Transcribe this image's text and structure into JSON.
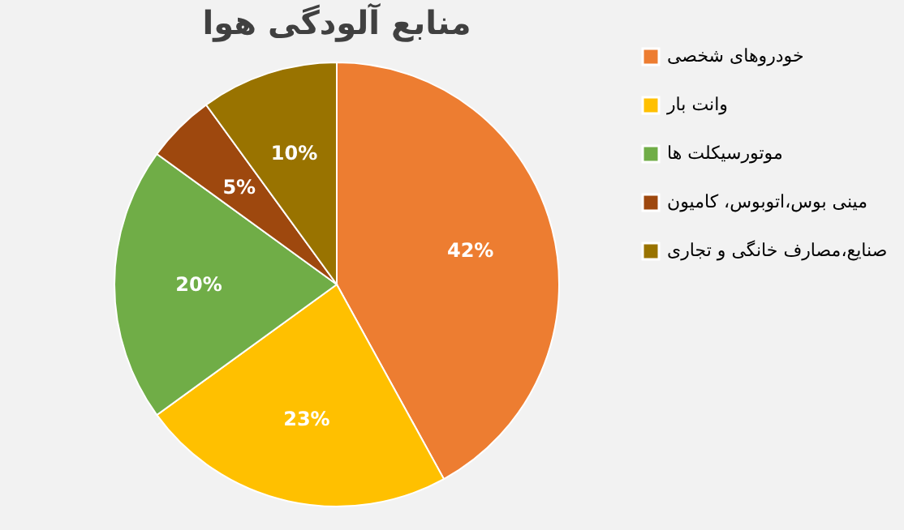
{
  "chart_data": {
    "type": "pie",
    "title": "منابع آلودگی هوا",
    "categories": [
      "خودروهای شخصی",
      "وانت بار",
      "موتورسیکلت ها",
      "مینی بوس،اتوبوس، کامیون",
      "صنایع،مصارف خانگی و تجاری"
    ],
    "values": [
      42,
      23,
      20,
      5,
      10
    ],
    "colors": [
      "#ed7d31",
      "#ffc000",
      "#70ad47",
      "#9e480e",
      "#997300"
    ],
    "value_labels": [
      "42%",
      "23%",
      "20%",
      "5%",
      "10%"
    ],
    "legend": "right"
  }
}
